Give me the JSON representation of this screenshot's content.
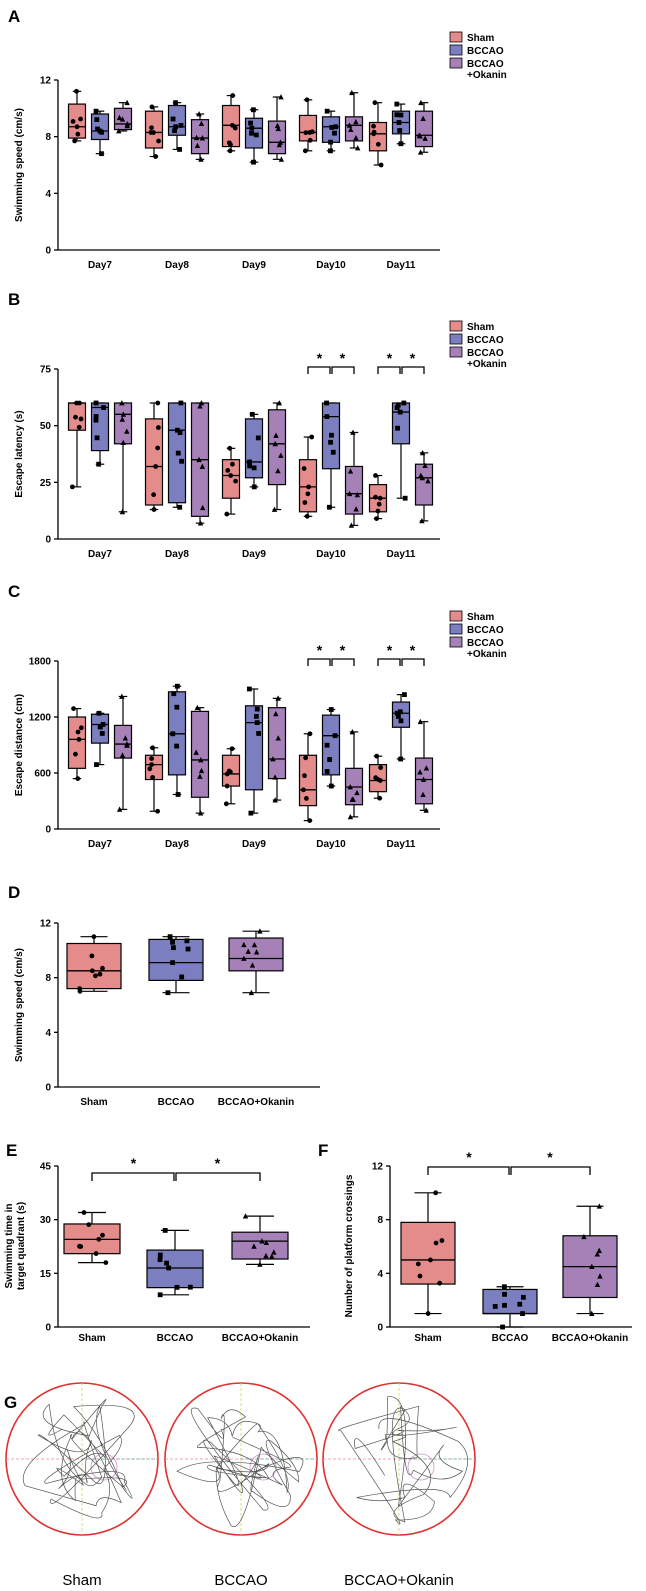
{
  "colors": {
    "sham": "#e48b8b",
    "bccao": "#7b7fbf",
    "okanin": "#a581b8"
  },
  "legend": [
    "Sham",
    "BCCAO",
    "BCCAO\n+Okanin"
  ],
  "chart_data": [
    {
      "panel": "A",
      "type": "box",
      "ylabel": "Swimming speed (cm/s)",
      "ylim": [
        0,
        12
      ],
      "yticks": [
        0,
        4,
        8,
        12
      ],
      "categories": [
        "Day7",
        "Day8",
        "Day9",
        "Day10",
        "Day11"
      ],
      "series": [
        {
          "name": "Sham",
          "boxes": [
            [
              7.7,
              7.9,
              8.7,
              10.3,
              11.2
            ],
            [
              6.6,
              7.2,
              8.3,
              9.8,
              10.1
            ],
            [
              7.0,
              7.3,
              8.8,
              10.2,
              10.9
            ],
            [
              7.0,
              7.7,
              8.3,
              9.5,
              10.6
            ],
            [
              6.0,
              7.0,
              8.2,
              9.0,
              10.4
            ]
          ]
        },
        {
          "name": "BCCAO",
          "boxes": [
            [
              6.8,
              7.8,
              8.4,
              9.6,
              9.8
            ],
            [
              7.1,
              8.1,
              8.7,
              10.2,
              10.4
            ],
            [
              6.2,
              7.2,
              8.6,
              9.3,
              9.9
            ],
            [
              7.0,
              7.6,
              8.7,
              9.4,
              9.8
            ],
            [
              7.5,
              8.2,
              9.0,
              9.8,
              10.3
            ]
          ]
        },
        {
          "name": "BCCAO\n+Okanin",
          "boxes": [
            [
              8.4,
              8.5,
              8.9,
              10.0,
              10.4
            ],
            [
              6.4,
              6.8,
              7.9,
              9.2,
              9.6
            ],
            [
              6.4,
              6.8,
              7.6,
              9.1,
              10.8
            ],
            [
              7.2,
              7.7,
              8.8,
              9.4,
              11.1
            ],
            [
              6.9,
              7.3,
              8.1,
              9.8,
              10.4
            ]
          ]
        }
      ],
      "significance": []
    },
    {
      "panel": "B",
      "type": "box",
      "ylabel": "Escape latency (s)",
      "ylim": [
        0,
        75
      ],
      "yticks": [
        0,
        25,
        50,
        75
      ],
      "categories": [
        "Day7",
        "Day8",
        "Day9",
        "Day10",
        "Day11"
      ],
      "series": [
        {
          "name": "Sham",
          "boxes": [
            [
              23,
              48,
              60,
              60,
              60
            ],
            [
              13,
              15,
              32,
              53,
              60
            ],
            [
              11,
              18,
              28,
              35,
              40
            ],
            [
              10,
              12,
              23,
              35,
              45
            ],
            [
              9,
              12,
              18,
              24,
              28
            ]
          ]
        },
        {
          "name": "BCCAO",
          "boxes": [
            [
              33,
              39,
              58,
              60,
              60
            ],
            [
              14,
              16,
              48,
              60,
              60
            ],
            [
              23,
              27,
              34,
              53,
              55
            ],
            [
              14,
              31,
              54,
              60,
              60
            ],
            [
              18,
              42,
              56,
              60,
              60
            ]
          ]
        },
        {
          "name": "BCCAO\n+Okanin",
          "boxes": [
            [
              12,
              42,
              55,
              60,
              60
            ],
            [
              7,
              10,
              35,
              60,
              60
            ],
            [
              13,
              24,
              42,
              57,
              60
            ],
            [
              6,
              11,
              20,
              32,
              47
            ],
            [
              8,
              15,
              27,
              33,
              38
            ]
          ]
        }
      ],
      "significance": [
        {
          "day": 3,
          "label": "*"
        },
        {
          "day": 4,
          "label": "*"
        }
      ]
    },
    {
      "panel": "C",
      "type": "box",
      "ylabel": "Escape distance (cm)",
      "ylim": [
        0,
        1800
      ],
      "yticks": [
        0,
        600,
        1200,
        1800
      ],
      "categories": [
        "Day7",
        "Day8",
        "Day9",
        "Day10",
        "Day11"
      ],
      "series": [
        {
          "name": "Sham",
          "boxes": [
            [
              540,
              650,
              960,
              1200,
              1290
            ],
            [
              190,
              530,
              690,
              790,
              870
            ],
            [
              270,
              460,
              590,
              790,
              860
            ],
            [
              90,
              250,
              420,
              790,
              1020
            ],
            [
              330,
              400,
              520,
              690,
              780
            ]
          ]
        },
        {
          "name": "BCCAO",
          "boxes": [
            [
              690,
              920,
              1120,
              1230,
              1240
            ],
            [
              370,
              580,
              1020,
              1470,
              1530
            ],
            [
              170,
              420,
              1140,
              1320,
              1500
            ],
            [
              460,
              580,
              1000,
              1220,
              1280
            ],
            [
              750,
              1090,
              1240,
              1360,
              1440
            ]
          ]
        },
        {
          "name": "BCCAO\n+Okanin",
          "boxes": [
            [
              210,
              760,
              910,
              1110,
              1420
            ],
            [
              170,
              340,
              740,
              1260,
              1300
            ],
            [
              310,
              540,
              750,
              1300,
              1400
            ],
            [
              130,
              260,
              450,
              650,
              1040
            ],
            [
              200,
              270,
              530,
              760,
              1150
            ]
          ]
        }
      ],
      "significance": [
        {
          "day": 3,
          "label": "*"
        },
        {
          "day": 4,
          "label": "*"
        }
      ]
    },
    {
      "panel": "D",
      "type": "box",
      "ylabel": "Swimming speed (cm/s)",
      "ylim": [
        0,
        12
      ],
      "yticks": [
        0,
        4,
        8,
        12
      ],
      "categories": [
        "Sham",
        "BCCAO",
        "BCCAO+Okanin"
      ],
      "boxes": [
        [
          7.0,
          7.2,
          8.5,
          10.5,
          11.0
        ],
        [
          6.9,
          7.8,
          9.1,
          10.8,
          11.0
        ],
        [
          6.9,
          8.5,
          9.4,
          10.9,
          11.4
        ]
      ],
      "significance": []
    },
    {
      "panel": "E",
      "type": "box",
      "ylabel_lines": [
        "Swimming time in",
        "target quadrant (s)"
      ],
      "ylim": [
        0,
        45
      ],
      "yticks": [
        0,
        15,
        30,
        45
      ],
      "categories": [
        "Sham",
        "BCCAO",
        "BCCAO+Okanin"
      ],
      "boxes": [
        [
          18,
          20.5,
          24.5,
          28.8,
          32
        ],
        [
          9,
          11,
          16.5,
          21.5,
          27
        ],
        [
          17.5,
          19,
          24,
          26.5,
          31
        ]
      ],
      "significance": [
        {
          "label": "*"
        },
        {
          "label": "*"
        }
      ]
    },
    {
      "panel": "F",
      "type": "box",
      "ylabel": "Number of platform crossings",
      "ylim": [
        0,
        12
      ],
      "yticks": [
        0,
        4,
        8,
        12
      ],
      "categories": [
        "Sham",
        "BCCAO",
        "BCCAO+Okanin"
      ],
      "boxes": [
        [
          1,
          3.2,
          5,
          7.8,
          10
        ],
        [
          0,
          1,
          1,
          2.8,
          3
        ],
        [
          1,
          2.2,
          4.5,
          6.8,
          9
        ]
      ],
      "significance": [
        {
          "label": "*"
        },
        {
          "label": "*"
        }
      ]
    }
  ],
  "track_labels": [
    "Sham",
    "BCCAO",
    "BCCAO+Okanin"
  ],
  "panel_letters": {
    "G": "G"
  }
}
